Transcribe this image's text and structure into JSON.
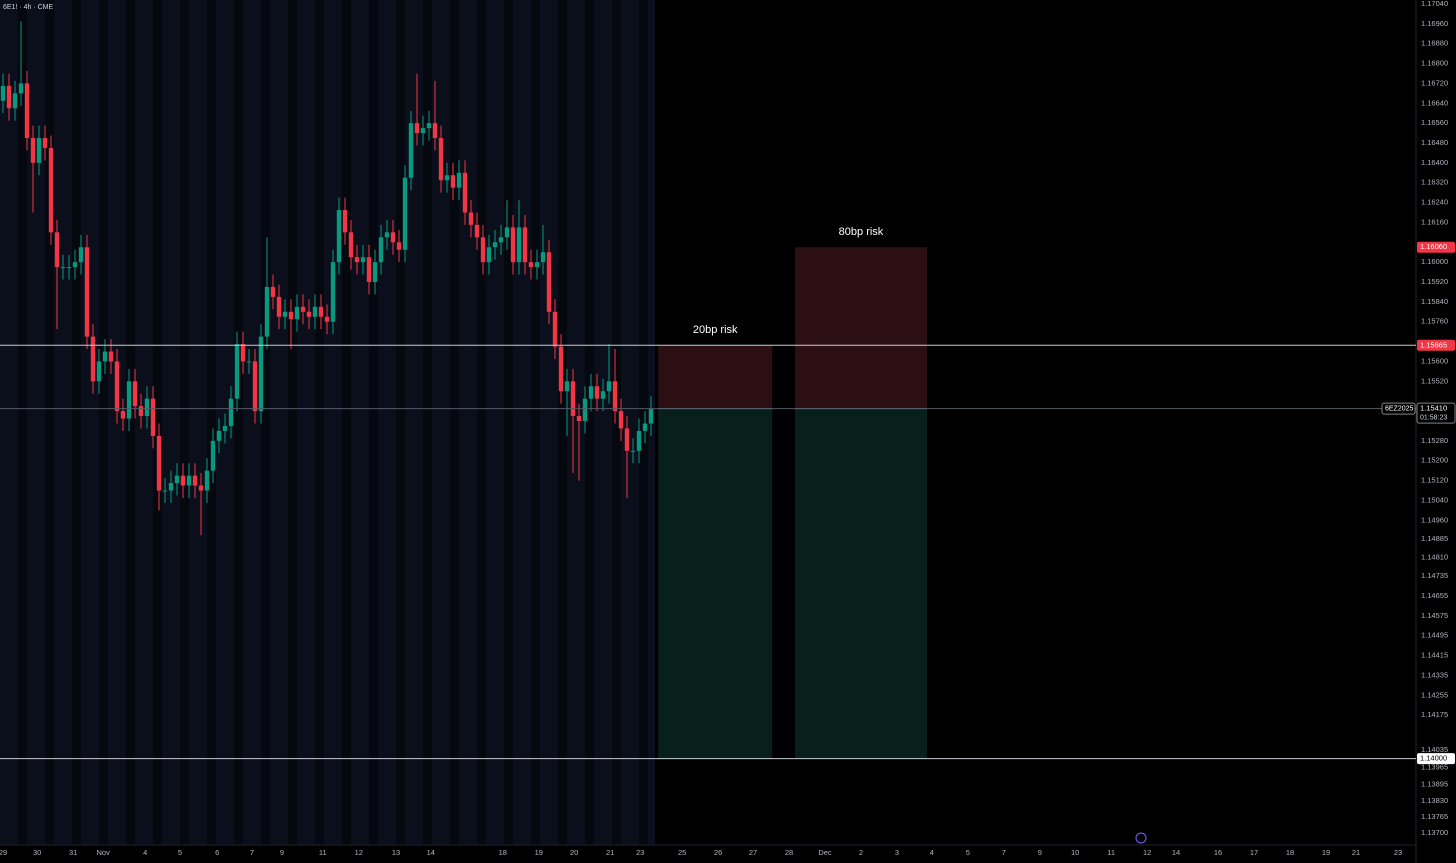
{
  "chart_data": {
    "type": "candlestick",
    "title": "6E1! · 4h · CME",
    "x": [
      0,
      1,
      2,
      3,
      4,
      5,
      6,
      7,
      8,
      9,
      10,
      11,
      12,
      13,
      14,
      15,
      16,
      17,
      18,
      19,
      20,
      21,
      22,
      23,
      24,
      25,
      26,
      27,
      28,
      29,
      30,
      31,
      32,
      33,
      34,
      35,
      36,
      37,
      38,
      39,
      40,
      41,
      42,
      43,
      44,
      45,
      46,
      47,
      48,
      49,
      50,
      51,
      52,
      53,
      54,
      55,
      56,
      57,
      58,
      59,
      60,
      61,
      62,
      63,
      64,
      65,
      66,
      67,
      68,
      69,
      70,
      71,
      72,
      73,
      74,
      75,
      76,
      77,
      78,
      79,
      80,
      81,
      82,
      83,
      84,
      85,
      86,
      87,
      88,
      89,
      90,
      91,
      92,
      93,
      94,
      95,
      96,
      97,
      98,
      99,
      100,
      101,
      102,
      103,
      104,
      105,
      106,
      107,
      108
    ],
    "open": [
      1.1665,
      1.1671,
      1.1662,
      1.1668,
      1.1672,
      1.165,
      1.164,
      1.165,
      1.1646,
      1.1612,
      1.1598,
      1.1598,
      1.1598,
      1.16,
      1.1606,
      1.157,
      1.1552,
      1.156,
      1.1564,
      1.156,
      1.154,
      1.1537,
      1.1552,
      1.1542,
      1.1538,
      1.1545,
      1.153,
      1.1508,
      1.1508,
      1.1511,
      1.1514,
      1.151,
      1.1514,
      1.151,
      1.1508,
      1.1516,
      1.1528,
      1.1532,
      1.1534,
      1.1545,
      1.1567,
      1.156,
      1.156,
      1.154,
      1.157,
      1.159,
      1.1586,
      1.1578,
      1.158,
      1.1577,
      1.1582,
      1.158,
      1.1578,
      1.1582,
      1.1578,
      1.1576,
      1.16,
      1.1621,
      1.1612,
      1.1602,
      1.16,
      1.1602,
      1.1592,
      1.16,
      1.161,
      1.1612,
      1.1608,
      1.1605,
      1.1634,
      1.1656,
      1.1652,
      1.1654,
      1.1656,
      1.165,
      1.1633,
      1.1635,
      1.163,
      1.1636,
      1.162,
      1.1615,
      1.161,
      1.16,
      1.1606,
      1.1608,
      1.161,
      1.1614,
      1.16,
      1.1614,
      1.16,
      1.1598,
      1.16,
      1.1604,
      1.158,
      1.1566,
      1.1548,
      1.1552,
      1.1538,
      1.1536,
      1.1545,
      1.155,
      1.1545,
      1.1548,
      1.1552,
      1.154,
      1.1533,
      1.1524,
      1.1524,
      1.1532,
      1.1535
    ],
    "high": [
      1.1676,
      1.1676,
      1.1673,
      1.1697,
      1.1677,
      1.1655,
      1.1655,
      1.1655,
      1.1651,
      1.1617,
      1.1603,
      1.1603,
      1.1605,
      1.1611,
      1.1611,
      1.1575,
      1.1565,
      1.1569,
      1.1569,
      1.1565,
      1.1545,
      1.1557,
      1.1557,
      1.1547,
      1.155,
      1.155,
      1.1535,
      1.1513,
      1.1516,
      1.1519,
      1.1519,
      1.1519,
      1.1519,
      1.1515,
      1.1521,
      1.1533,
      1.1537,
      1.1539,
      1.155,
      1.1572,
      1.1572,
      1.1565,
      1.1565,
      1.1575,
      1.161,
      1.1595,
      1.1591,
      1.1585,
      1.1585,
      1.1587,
      1.1587,
      1.1585,
      1.1587,
      1.1587,
      1.1583,
      1.1605,
      1.1626,
      1.1626,
      1.1617,
      1.1607,
      1.1607,
      1.1607,
      1.1605,
      1.1615,
      1.1617,
      1.1617,
      1.1613,
      1.1639,
      1.1661,
      1.1676,
      1.1659,
      1.1661,
      1.1673,
      1.1655,
      1.164,
      1.164,
      1.1641,
      1.1641,
      1.1625,
      1.162,
      1.1615,
      1.1611,
      1.1613,
      1.1615,
      1.1625,
      1.1619,
      1.1625,
      1.1619,
      1.1605,
      1.1605,
      1.1615,
      1.1609,
      1.1585,
      1.1571,
      1.1557,
      1.1557,
      1.1543,
      1.155,
      1.1555,
      1.1555,
      1.1553,
      1.1567,
      1.1565,
      1.1545,
      1.1538,
      1.1529,
      1.1537,
      1.154,
      1.1546
    ],
    "low": [
      1.166,
      1.1657,
      1.1657,
      1.1663,
      1.1645,
      1.162,
      1.1635,
      1.1641,
      1.1607,
      1.1573,
      1.1593,
      1.1593,
      1.1593,
      1.1595,
      1.1565,
      1.1547,
      1.1547,
      1.1555,
      1.1555,
      1.1535,
      1.1532,
      1.1532,
      1.1537,
      1.1533,
      1.1533,
      1.1525,
      1.15,
      1.1503,
      1.1503,
      1.1506,
      1.1505,
      1.1505,
      1.1505,
      1.149,
      1.1503,
      1.1511,
      1.1523,
      1.1527,
      1.1529,
      1.154,
      1.1555,
      1.1555,
      1.1535,
      1.1535,
      1.1565,
      1.1581,
      1.1573,
      1.1573,
      1.1565,
      1.1572,
      1.1575,
      1.1573,
      1.1573,
      1.1573,
      1.1571,
      1.1571,
      1.1595,
      1.1607,
      1.1597,
      1.1595,
      1.1595,
      1.1587,
      1.1587,
      1.1595,
      1.1605,
      1.1603,
      1.16,
      1.16,
      1.1629,
      1.1647,
      1.1647,
      1.1649,
      1.1645,
      1.1628,
      1.1628,
      1.1625,
      1.1625,
      1.1615,
      1.161,
      1.1605,
      1.1595,
      1.1595,
      1.1601,
      1.1603,
      1.1605,
      1.1595,
      1.1595,
      1.1595,
      1.1593,
      1.1593,
      1.1595,
      1.1575,
      1.1561,
      1.1543,
      1.153,
      1.1515,
      1.1512,
      1.1531,
      1.154,
      1.154,
      1.154,
      1.1543,
      1.1535,
      1.1528,
      1.1505,
      1.1519,
      1.1519,
      1.1527,
      1.153
    ],
    "close": [
      1.1671,
      1.1662,
      1.1668,
      1.1672,
      1.165,
      1.164,
      1.165,
      1.1646,
      1.1612,
      1.1598,
      1.1598,
      1.1598,
      1.16,
      1.1606,
      1.157,
      1.1552,
      1.156,
      1.1564,
      1.156,
      1.154,
      1.1537,
      1.1552,
      1.1542,
      1.1538,
      1.1545,
      1.153,
      1.1508,
      1.1508,
      1.1511,
      1.1514,
      1.151,
      1.1514,
      1.151,
      1.1508,
      1.1516,
      1.1528,
      1.1532,
      1.1534,
      1.1545,
      1.1567,
      1.156,
      1.156,
      1.154,
      1.157,
      1.159,
      1.1586,
      1.1578,
      1.158,
      1.1577,
      1.1582,
      1.158,
      1.1578,
      1.1582,
      1.1578,
      1.1576,
      1.16,
      1.1621,
      1.1612,
      1.1602,
      1.16,
      1.1602,
      1.1592,
      1.16,
      1.161,
      1.1612,
      1.1608,
      1.1605,
      1.1634,
      1.1656,
      1.1652,
      1.1654,
      1.1656,
      1.165,
      1.1633,
      1.1635,
      1.163,
      1.1636,
      1.162,
      1.1615,
      1.161,
      1.16,
      1.1606,
      1.1608,
      1.161,
      1.1614,
      1.16,
      1.1614,
      1.16,
      1.1598,
      1.16,
      1.1604,
      1.158,
      1.1566,
      1.1548,
      1.1552,
      1.1538,
      1.1536,
      1.1545,
      1.155,
      1.1545,
      1.1548,
      1.1552,
      1.154,
      1.1533,
      1.1524,
      1.1524,
      1.1532,
      1.1535,
      1.1541
    ],
    "up_color": "#089981",
    "down_color": "#f23645",
    "xlim": [
      -0.5,
      235.5
    ],
    "ylim": [
      1.13652,
      1.17056
    ],
    "xticks": [
      {
        "value": 0,
        "label": "29"
      },
      {
        "value": 5.7,
        "label": "30"
      },
      {
        "value": 11.7,
        "label": "31"
      },
      {
        "value": 16.7,
        "label": "Nov"
      },
      {
        "value": 23.7,
        "label": "4"
      },
      {
        "value": 29.5,
        "label": "5"
      },
      {
        "value": 35.7,
        "label": "6"
      },
      {
        "value": 41.5,
        "label": "7"
      },
      {
        "value": 46.5,
        "label": "9"
      },
      {
        "value": 53.3,
        "label": "11"
      },
      {
        "value": 59.3,
        "label": "12"
      },
      {
        "value": 65.5,
        "label": "13"
      },
      {
        "value": 71.3,
        "label": "14"
      },
      {
        "value": 83.3,
        "label": "18"
      },
      {
        "value": 89.3,
        "label": "19"
      },
      {
        "value": 95.2,
        "label": "20"
      },
      {
        "value": 101.2,
        "label": "21"
      },
      {
        "value": 106.2,
        "label": "23"
      },
      {
        "value": 113.2,
        "label": "25"
      },
      {
        "value": 119.2,
        "label": "26"
      },
      {
        "value": 125,
        "label": "27"
      },
      {
        "value": 131,
        "label": "28"
      },
      {
        "value": 137,
        "label": "Dec"
      },
      {
        "value": 143,
        "label": "2"
      },
      {
        "value": 149,
        "label": "3"
      },
      {
        "value": 154.8,
        "label": "4"
      },
      {
        "value": 160.8,
        "label": "5"
      },
      {
        "value": 166.8,
        "label": "7"
      },
      {
        "value": 172.8,
        "label": "9"
      },
      {
        "value": 178.7,
        "label": "10"
      },
      {
        "value": 184.7,
        "label": "11"
      },
      {
        "value": 190.7,
        "label": "12"
      },
      {
        "value": 195.5,
        "label": "14"
      },
      {
        "value": 202.5,
        "label": "16"
      },
      {
        "value": 208.5,
        "label": "17"
      },
      {
        "value": 214.5,
        "label": "18"
      },
      {
        "value": 220.5,
        "label": "19"
      },
      {
        "value": 225.5,
        "label": "21"
      },
      {
        "value": 232.5,
        "label": "23"
      }
    ],
    "yticks": [
      {
        "value": 1.1704,
        "label": "1.17040"
      },
      {
        "value": 1.1696,
        "label": "1.16960"
      },
      {
        "value": 1.1688,
        "label": "1.16880"
      },
      {
        "value": 1.168,
        "label": "1.16800"
      },
      {
        "value": 1.1672,
        "label": "1.16720"
      },
      {
        "value": 1.1664,
        "label": "1.16640"
      },
      {
        "value": 1.1656,
        "label": "1.16560"
      },
      {
        "value": 1.1648,
        "label": "1.16480"
      },
      {
        "value": 1.164,
        "label": "1.16400"
      },
      {
        "value": 1.1632,
        "label": "1.16320"
      },
      {
        "value": 1.1624,
        "label": "1.16240"
      },
      {
        "value": 1.1616,
        "label": "1.16160"
      },
      {
        "value": 1.16,
        "label": "1.16000"
      },
      {
        "value": 1.1592,
        "label": "1.15920"
      },
      {
        "value": 1.1584,
        "label": "1.15840"
      },
      {
        "value": 1.1576,
        "label": "1.15760"
      },
      {
        "value": 1.156,
        "label": "1.15600"
      },
      {
        "value": 1.1552,
        "label": "1.15520"
      },
      {
        "value": 1.1528,
        "label": "1.15280"
      },
      {
        "value": 1.152,
        "label": "1.15200"
      },
      {
        "value": 1.1512,
        "label": "1.15120"
      },
      {
        "value": 1.1504,
        "label": "1.15040"
      },
      {
        "value": 1.1496,
        "label": "1.14960"
      },
      {
        "value": 1.14885,
        "label": "1.14885"
      },
      {
        "value": 1.1481,
        "label": "1.14810"
      },
      {
        "value": 1.14735,
        "label": "1.14735"
      },
      {
        "value": 1.14655,
        "label": "1.14655"
      },
      {
        "value": 1.14575,
        "label": "1.14575"
      },
      {
        "value": 1.14495,
        "label": "1.14495"
      },
      {
        "value": 1.14415,
        "label": "1.14415"
      },
      {
        "value": 1.14335,
        "label": "1.14335"
      },
      {
        "value": 1.14255,
        "label": "1.14255"
      },
      {
        "value": 1.14175,
        "label": "1.14175"
      },
      {
        "value": 1.14035,
        "label": "1.14035"
      },
      {
        "value": 1.13965,
        "label": "1.13965"
      },
      {
        "value": 1.13895,
        "label": "1.13895"
      },
      {
        "value": 1.1383,
        "label": "1.13830"
      },
      {
        "value": 1.13765,
        "label": "1.13765"
      },
      {
        "value": 1.137,
        "label": "1.13700"
      }
    ],
    "positions": [
      {
        "label": "20bp risk",
        "start": 109.2,
        "end": 128.2,
        "entry": 1.1541,
        "stop": 1.15665,
        "target": 1.14
      },
      {
        "label": "80bp risk",
        "start": 132,
        "end": 154,
        "entry": 1.1541,
        "stop": 1.1606,
        "target": 1.14
      }
    ],
    "price_labels": [
      {
        "value": 1.1606,
        "label": "1.16060",
        "color": "#f23645",
        "line": false
      },
      {
        "value": 1.15665,
        "label": "1.15665",
        "color": "#f23645",
        "line": true
      },
      {
        "value": 1.1541,
        "label": "1.15410",
        "color": "#d1d4dc",
        "line": true,
        "symbol": "6EZ2025",
        "countdown": "01:58:23"
      },
      {
        "value": 1.14,
        "label": "1.14000",
        "color": "#ffffff",
        "line": true
      }
    ]
  }
}
